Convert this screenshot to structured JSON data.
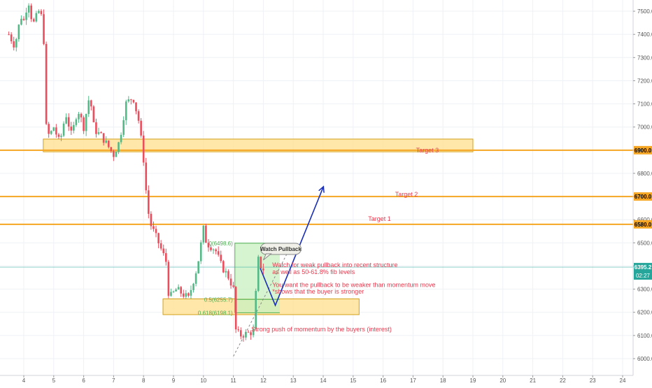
{
  "chart_data": {
    "type": "candlestick",
    "grid": true,
    "x_axis": {
      "min": 3.5,
      "max": 24.5,
      "ticks": [
        {
          "value": 4,
          "label": "4"
        },
        {
          "value": 5,
          "label": "5"
        },
        {
          "value": 6,
          "label": "6"
        },
        {
          "value": 7,
          "label": "7"
        },
        {
          "value": 8,
          "label": "8"
        },
        {
          "value": 9,
          "label": "9"
        },
        {
          "value": 10,
          "label": "10"
        },
        {
          "value": 11,
          "label": "11"
        },
        {
          "value": 12,
          "label": "12"
        },
        {
          "value": 13,
          "label": "13"
        },
        {
          "value": 14,
          "label": "14"
        },
        {
          "value": 15,
          "label": "15"
        },
        {
          "value": 16,
          "label": "16"
        },
        {
          "value": 17,
          "label": "17"
        },
        {
          "value": 18,
          "label": "18"
        },
        {
          "value": 19,
          "label": "19"
        },
        {
          "value": 20,
          "label": "20"
        },
        {
          "value": 21,
          "label": "21"
        },
        {
          "value": 22,
          "label": "22"
        },
        {
          "value": 23,
          "label": "23"
        },
        {
          "value": 24,
          "label": "24"
        }
      ]
    },
    "y_axis": {
      "min": 5940,
      "max": 7610,
      "ticks": [
        {
          "value": 6000,
          "label": "6000.0"
        },
        {
          "value": 6100,
          "label": "6100.0"
        },
        {
          "value": 6200,
          "label": "6200.0"
        },
        {
          "value": 6300,
          "label": "6300.0"
        },
        {
          "value": 6400,
          "label": "6400.0"
        },
        {
          "value": 6500,
          "label": "6500.0"
        },
        {
          "value": 6600,
          "label": "6600.0"
        },
        {
          "value": 6700,
          "label": "6700.0"
        },
        {
          "value": 6800,
          "label": "6800.0"
        },
        {
          "value": 6900,
          "label": "6900.0"
        },
        {
          "value": 7000,
          "label": "7000.0"
        },
        {
          "value": 7100,
          "label": "7100.0"
        },
        {
          "value": 7200,
          "label": "7200.0"
        },
        {
          "value": 7300,
          "label": "7300.0"
        },
        {
          "value": 7400,
          "label": "7400.0"
        },
        {
          "value": 7500,
          "label": "7500.0"
        },
        {
          "value": 7600,
          "label": "7600.0"
        }
      ]
    },
    "current_price": {
      "value": 6395.2,
      "label": "6395.2",
      "countdown": "02:27"
    },
    "colors": {
      "up": "#53b987",
      "down": "#eb4d5c",
      "level": "#f5a623",
      "zone_fill": "#ffe29a",
      "zone_border": "#d4a017",
      "annotation": "#e83a4e",
      "fib": "#4caf50",
      "projection": "#1a2fb5",
      "current_price": "#26a69a",
      "grid": "#eef1f5",
      "axis_text": "#555555"
    },
    "candles_keyframes": [
      [
        3.5,
        7400
      ],
      [
        3.7,
        7350
      ],
      [
        3.9,
        7480
      ],
      [
        4.0,
        7460
      ],
      [
        4.15,
        7550
      ],
      [
        4.3,
        7440
      ],
      [
        4.5,
        7500
      ],
      [
        4.65,
        7460
      ],
      [
        4.7,
        7200
      ],
      [
        4.75,
        7000
      ],
      [
        4.85,
        6960
      ],
      [
        5.0,
        7000
      ],
      [
        5.2,
        6930
      ],
      [
        5.4,
        7060
      ],
      [
        5.6,
        6960
      ],
      [
        5.8,
        7080
      ],
      [
        6.0,
        7000
      ],
      [
        6.2,
        7140
      ],
      [
        6.35,
        6990
      ],
      [
        6.6,
        6960
      ],
      [
        6.9,
        6900
      ],
      [
        7.0,
        6880
      ],
      [
        7.2,
        6940
      ],
      [
        7.4,
        7100
      ],
      [
        7.65,
        7130
      ],
      [
        7.85,
        7020
      ],
      [
        8.0,
        6860
      ],
      [
        8.1,
        6700
      ],
      [
        8.2,
        6590
      ],
      [
        8.5,
        6500
      ],
      [
        8.75,
        6420
      ],
      [
        8.85,
        6260
      ],
      [
        9.1,
        6300
      ],
      [
        9.5,
        6260
      ],
      [
        9.8,
        6400
      ],
      [
        10.0,
        6560
      ],
      [
        10.1,
        6500
      ],
      [
        10.4,
        6470
      ],
      [
        10.6,
        6400
      ],
      [
        10.85,
        6350
      ],
      [
        11.0,
        6300
      ],
      [
        11.05,
        6130
      ],
      [
        11.2,
        6100
      ],
      [
        11.5,
        6110
      ],
      [
        11.7,
        6120
      ],
      [
        11.8,
        6440
      ],
      [
        11.9,
        6400
      ],
      [
        12.05,
        6380
      ]
    ],
    "horizontal_levels": [
      {
        "price": 6900,
        "label": "6900.0"
      },
      {
        "price": 6700,
        "label": "6700.0"
      },
      {
        "price": 6580,
        "label": "6580.0"
      }
    ],
    "zones": [
      {
        "x1": 4.65,
        "x2": 19.0,
        "y1": 6893,
        "y2": 6948
      },
      {
        "x1": 8.65,
        "x2": 15.2,
        "y1": 6190,
        "y2": 6258
      }
    ],
    "fib_box": {
      "x1": 11.05,
      "x2": 12.55,
      "y_top": 6500,
      "y_bottom": 6198
    },
    "fib_levels": [
      {
        "price": 6498.6,
        "label": "0(6498.6)"
      },
      {
        "price": 6255.7,
        "label": "0.5(6255.7)"
      },
      {
        "price": 6198.1,
        "label": "0.618(6198.1)"
      }
    ],
    "projection_path": [
      [
        11.9,
        6390
      ],
      [
        12.4,
        6230
      ],
      [
        14.0,
        6740
      ]
    ],
    "dashed_trend": [
      [
        11.0,
        6010
      ],
      [
        12.9,
        6480
      ]
    ],
    "callout": {
      "x": 12.0,
      "price": 6480,
      "text": "Watch Pullback"
    },
    "annotations": [
      {
        "x": 11.0,
        "price": 6040,
        "text": ""
      },
      {
        "x": 17.1,
        "price": 6890,
        "text": "Target 3"
      },
      {
        "x": 16.4,
        "price": 6700,
        "text": "Target 2"
      },
      {
        "x": 15.5,
        "price": 6595,
        "text": "Target 1"
      },
      {
        "x": 12.3,
        "price": 6395,
        "text": "Watch for weak pullback into recent structure"
      },
      {
        "x": 12.3,
        "price": 6365,
        "text": "as well as 50-61.8% fib levels"
      },
      {
        "x": 12.3,
        "price": 6310,
        "text": "You want the pullback to be weaker than momentum move"
      },
      {
        "x": 12.3,
        "price": 6280,
        "text": "*shows that the buyer is stronger"
      },
      {
        "x": 11.6,
        "price": 6118,
        "text": "Strong push of momentum by the buyers (interest)"
      }
    ]
  }
}
